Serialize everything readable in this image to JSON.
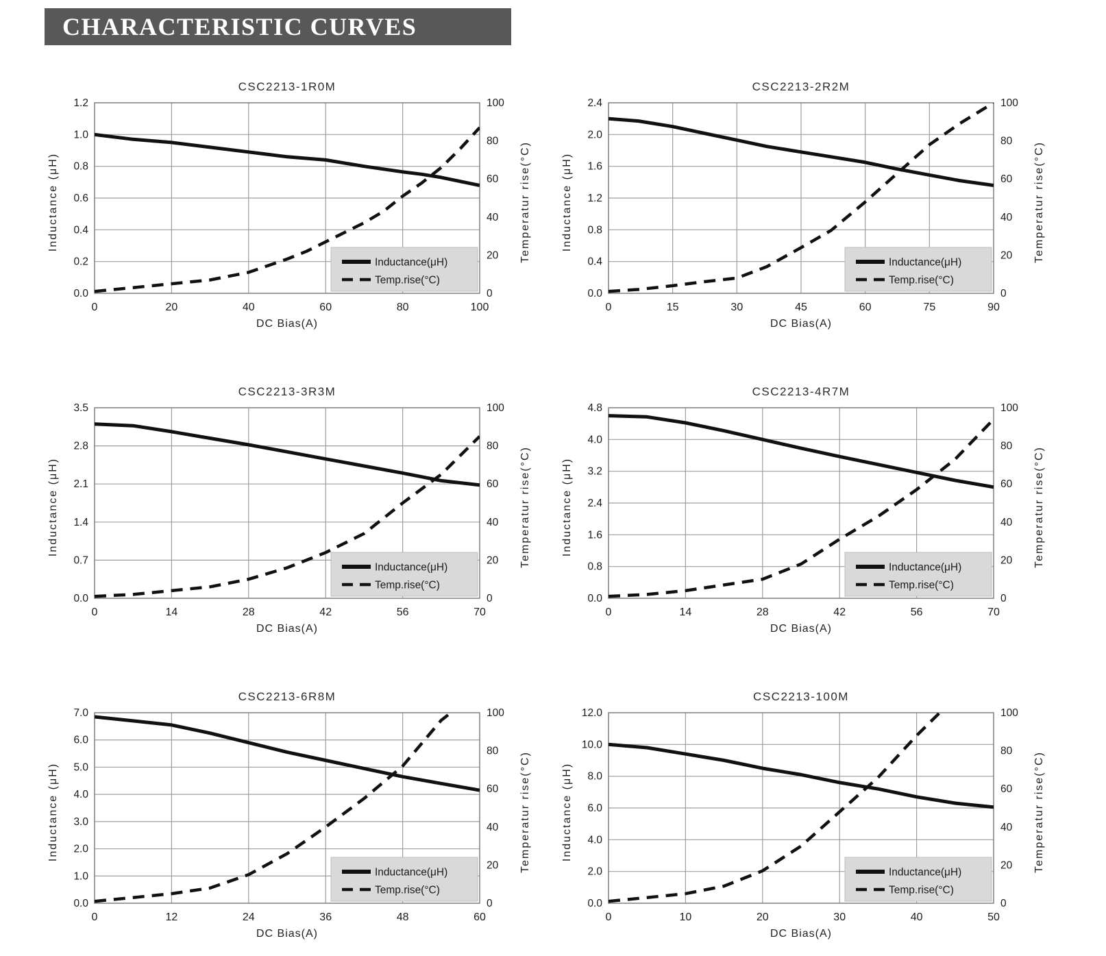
{
  "header": {
    "title": "CHARACTERISTIC CURVES"
  },
  "colors": {
    "header_bg": "#585858",
    "header_fg": "#ffffff",
    "grid": "#9d9d9d",
    "plot_border": "#7f7f7f",
    "curve": "#111111",
    "legend_bg": "#d9d9d9",
    "legend_border": "#bdbdbd",
    "text": "#1a1a1a"
  },
  "chart_data": [
    {
      "type": "line",
      "title": "CSC2213-1R0M",
      "xlabel": "DC Bias(A)",
      "ylabel_left": "Inductance (μH)",
      "ylabel_right": "Temperatur rise(°C)",
      "xlim": [
        0,
        100
      ],
      "xticks": [
        0,
        20,
        40,
        60,
        80,
        100
      ],
      "ylim_left": [
        0,
        1.2
      ],
      "yticks_left": [
        0,
        0.2,
        0.4,
        0.6,
        0.8,
        1.0,
        1.2
      ],
      "ylim_right": [
        0,
        100
      ],
      "yticks_right": [
        0,
        20,
        40,
        60,
        80,
        100
      ],
      "grid": true,
      "legend_position": "lower-right",
      "series": [
        {
          "name": "Inductance(μH)",
          "axis": "left",
          "style": "solid",
          "points": [
            [
              0,
              1.0
            ],
            [
              10,
              0.97
            ],
            [
              20,
              0.95
            ],
            [
              30,
              0.92
            ],
            [
              40,
              0.89
            ],
            [
              50,
              0.86
            ],
            [
              60,
              0.84
            ],
            [
              70,
              0.8
            ],
            [
              80,
              0.765
            ],
            [
              85,
              0.75
            ],
            [
              90,
              0.73
            ],
            [
              100,
              0.68
            ]
          ]
        },
        {
          "name": "Temp.rise(°C)",
          "axis": "right",
          "style": "dashed",
          "points": [
            [
              0,
              1
            ],
            [
              10,
              3
            ],
            [
              20,
              5
            ],
            [
              30,
              7
            ],
            [
              40,
              11
            ],
            [
              50,
              18
            ],
            [
              55,
              22
            ],
            [
              60,
              27
            ],
            [
              65,
              32
            ],
            [
              70,
              37
            ],
            [
              75,
              43
            ],
            [
              80,
              51
            ],
            [
              85,
              58
            ],
            [
              90,
              66
            ],
            [
              95,
              76
            ],
            [
              100,
              87
            ]
          ]
        }
      ]
    },
    {
      "type": "line",
      "title": "CSC2213-2R2M",
      "xlabel": "DC Bias(A)",
      "ylabel_left": "Inductance (μH)",
      "ylabel_right": "Temperatur rise(°C)",
      "xlim": [
        0,
        90
      ],
      "xticks": [
        0,
        15,
        30,
        45,
        60,
        75,
        90
      ],
      "ylim_left": [
        0,
        2.4
      ],
      "yticks_left": [
        0,
        0.4,
        0.8,
        1.2,
        1.6,
        2.0,
        2.4
      ],
      "ylim_right": [
        0,
        100
      ],
      "yticks_right": [
        0,
        20,
        40,
        60,
        80,
        100
      ],
      "grid": true,
      "legend_position": "lower-right",
      "series": [
        {
          "name": "Inductance(μH)",
          "axis": "left",
          "style": "solid",
          "points": [
            [
              0,
              2.2
            ],
            [
              7,
              2.17
            ],
            [
              15,
              2.1
            ],
            [
              22,
              2.02
            ],
            [
              30,
              1.93
            ],
            [
              37,
              1.85
            ],
            [
              45,
              1.78
            ],
            [
              52,
              1.72
            ],
            [
              60,
              1.65
            ],
            [
              67,
              1.57
            ],
            [
              75,
              1.49
            ],
            [
              82,
              1.42
            ],
            [
              90,
              1.36
            ]
          ]
        },
        {
          "name": "Temp.rise(°C)",
          "axis": "right",
          "style": "dashed",
          "points": [
            [
              0,
              1
            ],
            [
              7,
              2
            ],
            [
              15,
              4
            ],
            [
              22,
              6
            ],
            [
              30,
              8
            ],
            [
              37,
              14
            ],
            [
              45,
              24
            ],
            [
              52,
              33
            ],
            [
              60,
              48
            ],
            [
              67,
              62
            ],
            [
              75,
              78
            ],
            [
              82,
              89
            ],
            [
              90,
              100
            ]
          ]
        }
      ]
    },
    {
      "type": "line",
      "title": "CSC2213-3R3M",
      "xlabel": "DC Bias(A)",
      "ylabel_left": "Inductance (μH)",
      "ylabel_right": "Temperatur rise(°C)",
      "xlim": [
        0,
        70
      ],
      "xticks": [
        0,
        14,
        28,
        42,
        56,
        70
      ],
      "ylim_left": [
        0,
        3.5
      ],
      "yticks_left": [
        0,
        0.7,
        1.4,
        2.1,
        2.8,
        3.5
      ],
      "ylim_right": [
        0,
        100
      ],
      "yticks_right": [
        0,
        20,
        40,
        60,
        80,
        100
      ],
      "grid": true,
      "legend_position": "lower-right",
      "series": [
        {
          "name": "Inductance(μH)",
          "axis": "left",
          "style": "solid",
          "points": [
            [
              0,
              3.2
            ],
            [
              7,
              3.17
            ],
            [
              14,
              3.06
            ],
            [
              21,
              2.94
            ],
            [
              28,
              2.82
            ],
            [
              35,
              2.69
            ],
            [
              42,
              2.56
            ],
            [
              49,
              2.43
            ],
            [
              56,
              2.3
            ],
            [
              63,
              2.16
            ],
            [
              70,
              2.08
            ]
          ]
        },
        {
          "name": "Temp.rise(°C)",
          "axis": "right",
          "style": "dashed",
          "points": [
            [
              0,
              1
            ],
            [
              7,
              2
            ],
            [
              14,
              4
            ],
            [
              21,
              6
            ],
            [
              28,
              10
            ],
            [
              35,
              16
            ],
            [
              42,
              24
            ],
            [
              49,
              34
            ],
            [
              56,
              50
            ],
            [
              63,
              65
            ],
            [
              70,
              85
            ]
          ]
        }
      ]
    },
    {
      "type": "line",
      "title": "CSC2213-4R7M",
      "xlabel": "DC Bias(A)",
      "ylabel_left": "Inductance (μH)",
      "ylabel_right": "Temperatur rise(°C)",
      "xlim": [
        0,
        70
      ],
      "xticks": [
        0,
        14,
        28,
        42,
        56,
        70
      ],
      "ylim_left": [
        0,
        4.8
      ],
      "yticks_left": [
        0,
        0.8,
        1.6,
        2.4,
        3.2,
        4.0,
        4.8
      ],
      "ylim_right": [
        0,
        100
      ],
      "yticks_right": [
        0,
        20,
        40,
        60,
        80,
        100
      ],
      "grid": true,
      "legend_position": "lower-right",
      "series": [
        {
          "name": "Inductance(μH)",
          "axis": "left",
          "style": "solid",
          "points": [
            [
              0,
              4.6
            ],
            [
              7,
              4.57
            ],
            [
              14,
              4.42
            ],
            [
              21,
              4.22
            ],
            [
              28,
              4.0
            ],
            [
              35,
              3.78
            ],
            [
              42,
              3.57
            ],
            [
              49,
              3.37
            ],
            [
              56,
              3.17
            ],
            [
              63,
              2.97
            ],
            [
              70,
              2.8
            ]
          ]
        },
        {
          "name": "Temp.rise(°C)",
          "axis": "right",
          "style": "dashed",
          "points": [
            [
              0,
              1
            ],
            [
              7,
              2
            ],
            [
              14,
              4
            ],
            [
              21,
              7
            ],
            [
              28,
              10
            ],
            [
              35,
              18
            ],
            [
              42,
              31
            ],
            [
              49,
              43
            ],
            [
              56,
              57
            ],
            [
              63,
              73
            ],
            [
              70,
              94
            ]
          ]
        }
      ]
    },
    {
      "type": "line",
      "title": "CSC2213-6R8M",
      "xlabel": "DC Bias(A)",
      "ylabel_left": "Inductance (μH)",
      "ylabel_right": "Temperatur rise(°C)",
      "xlim": [
        0,
        60
      ],
      "xticks": [
        0,
        12,
        24,
        36,
        48,
        60
      ],
      "ylim_left": [
        0,
        7.0
      ],
      "yticks_left": [
        0,
        1.0,
        2.0,
        3.0,
        4.0,
        5.0,
        6.0,
        7.0
      ],
      "ylim_right": [
        0,
        100
      ],
      "yticks_right": [
        0,
        20,
        40,
        60,
        80,
        100
      ],
      "grid": true,
      "legend_position": "lower-right",
      "series": [
        {
          "name": "Inductance(μH)",
          "axis": "left",
          "style": "solid",
          "points": [
            [
              0,
              6.85
            ],
            [
              6,
              6.7
            ],
            [
              12,
              6.55
            ],
            [
              18,
              6.25
            ],
            [
              24,
              5.9
            ],
            [
              30,
              5.55
            ],
            [
              36,
              5.25
            ],
            [
              42,
              4.95
            ],
            [
              48,
              4.65
            ],
            [
              54,
              4.4
            ],
            [
              60,
              4.15
            ]
          ]
        },
        {
          "name": "Temp.rise(°C)",
          "axis": "right",
          "style": "dashed",
          "points": [
            [
              0,
              1
            ],
            [
              6,
              3
            ],
            [
              12,
              5
            ],
            [
              18,
              8
            ],
            [
              24,
              15
            ],
            [
              30,
              26
            ],
            [
              36,
              40
            ],
            [
              42,
              55
            ],
            [
              48,
              72
            ],
            [
              54,
              96
            ],
            [
              55.5,
              100
            ]
          ]
        }
      ]
    },
    {
      "type": "line",
      "title": "CSC2213-100M",
      "xlabel": "DC Bias(A)",
      "ylabel_left": "Inductance (μH)",
      "ylabel_right": "Temperatur rise(°C)",
      "xlim": [
        0,
        50
      ],
      "xticks": [
        0,
        10,
        20,
        30,
        40,
        50
      ],
      "ylim_left": [
        0,
        12.0
      ],
      "yticks_left": [
        0,
        2.0,
        4.0,
        6.0,
        8.0,
        10.0,
        12.0
      ],
      "ylim_right": [
        0,
        100
      ],
      "yticks_right": [
        0,
        20,
        40,
        60,
        80,
        100
      ],
      "grid": true,
      "legend_position": "lower-right",
      "series": [
        {
          "name": "Inductance(μH)",
          "axis": "left",
          "style": "solid",
          "points": [
            [
              0,
              10.0
            ],
            [
              5,
              9.8
            ],
            [
              10,
              9.4
            ],
            [
              15,
              9.0
            ],
            [
              20,
              8.5
            ],
            [
              25,
              8.1
            ],
            [
              30,
              7.6
            ],
            [
              35,
              7.2
            ],
            [
              40,
              6.7
            ],
            [
              45,
              6.3
            ],
            [
              50,
              6.05
            ]
          ]
        },
        {
          "name": "Temp.rise(°C)",
          "axis": "right",
          "style": "dashed",
          "points": [
            [
              0,
              1
            ],
            [
              5,
              3
            ],
            [
              10,
              5
            ],
            [
              15,
              9
            ],
            [
              20,
              17
            ],
            [
              25,
              30
            ],
            [
              30,
              48
            ],
            [
              35,
              66
            ],
            [
              40,
              88
            ],
            [
              43,
              100
            ]
          ]
        }
      ]
    }
  ]
}
